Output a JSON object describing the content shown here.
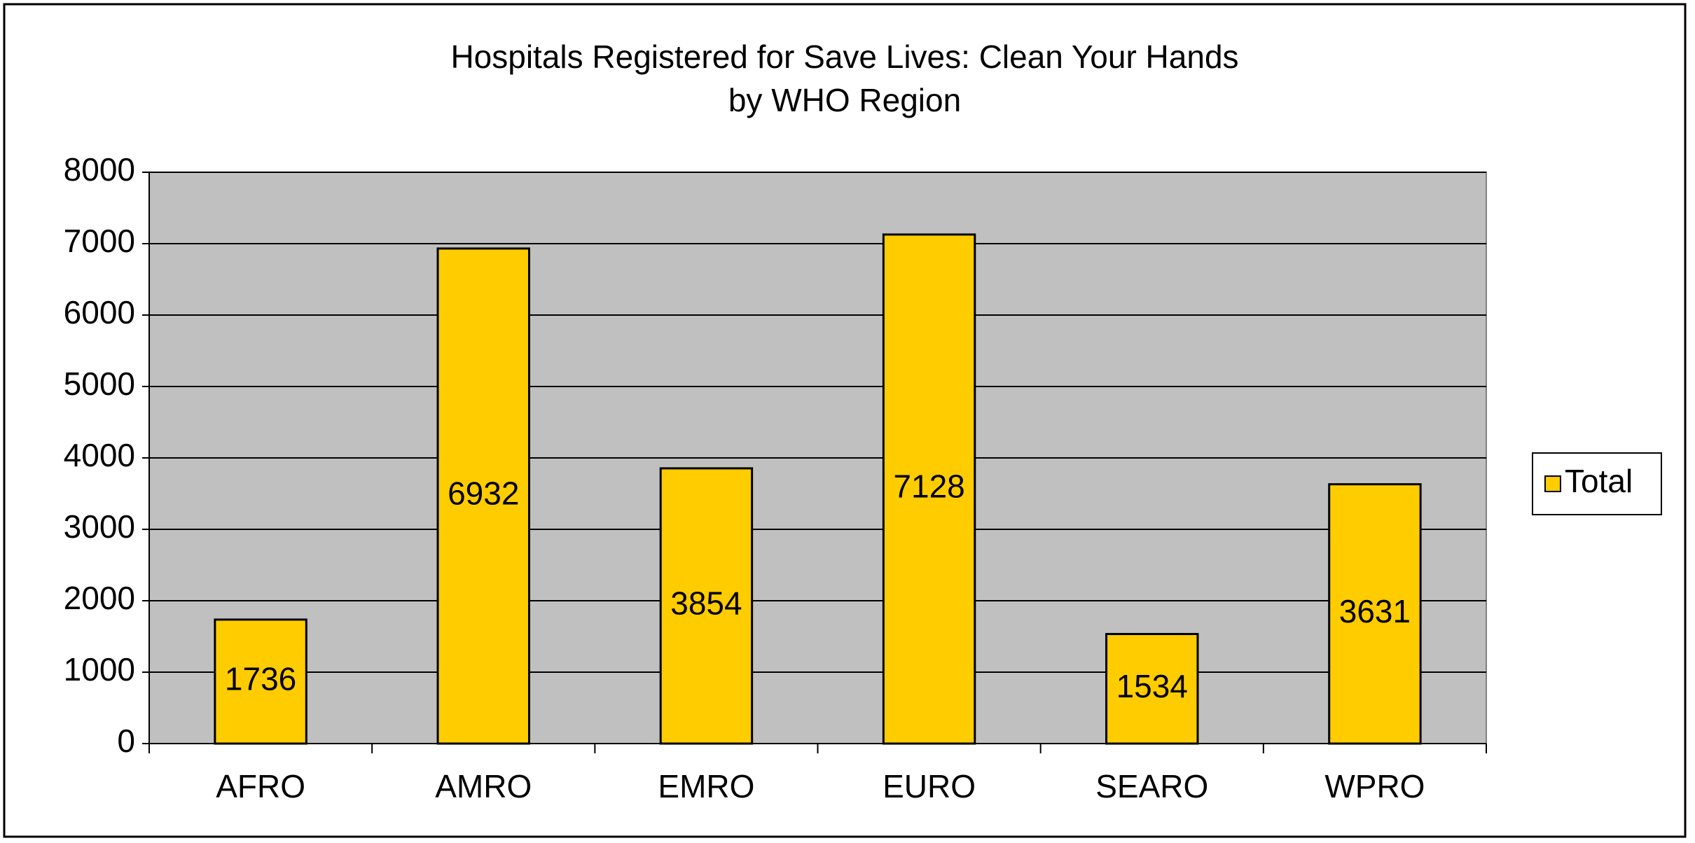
{
  "chart_data": {
    "type": "bar",
    "title": "Hospitals Registered for Save Lives: Clean Your Hands",
    "subtitle": "by WHO Region",
    "categories": [
      "AFRO",
      "AMRO",
      "EMRO",
      "EURO",
      "SEARO",
      "WPRO"
    ],
    "series": [
      {
        "name": "Total",
        "color": "#ffcc00",
        "values": [
          1736,
          6932,
          3854,
          7128,
          1534,
          3631
        ]
      }
    ],
    "ylim": [
      0,
      8000
    ],
    "yticks": [
      0,
      1000,
      2000,
      3000,
      4000,
      5000,
      6000,
      7000,
      8000
    ],
    "grid": true,
    "legend": "right"
  }
}
